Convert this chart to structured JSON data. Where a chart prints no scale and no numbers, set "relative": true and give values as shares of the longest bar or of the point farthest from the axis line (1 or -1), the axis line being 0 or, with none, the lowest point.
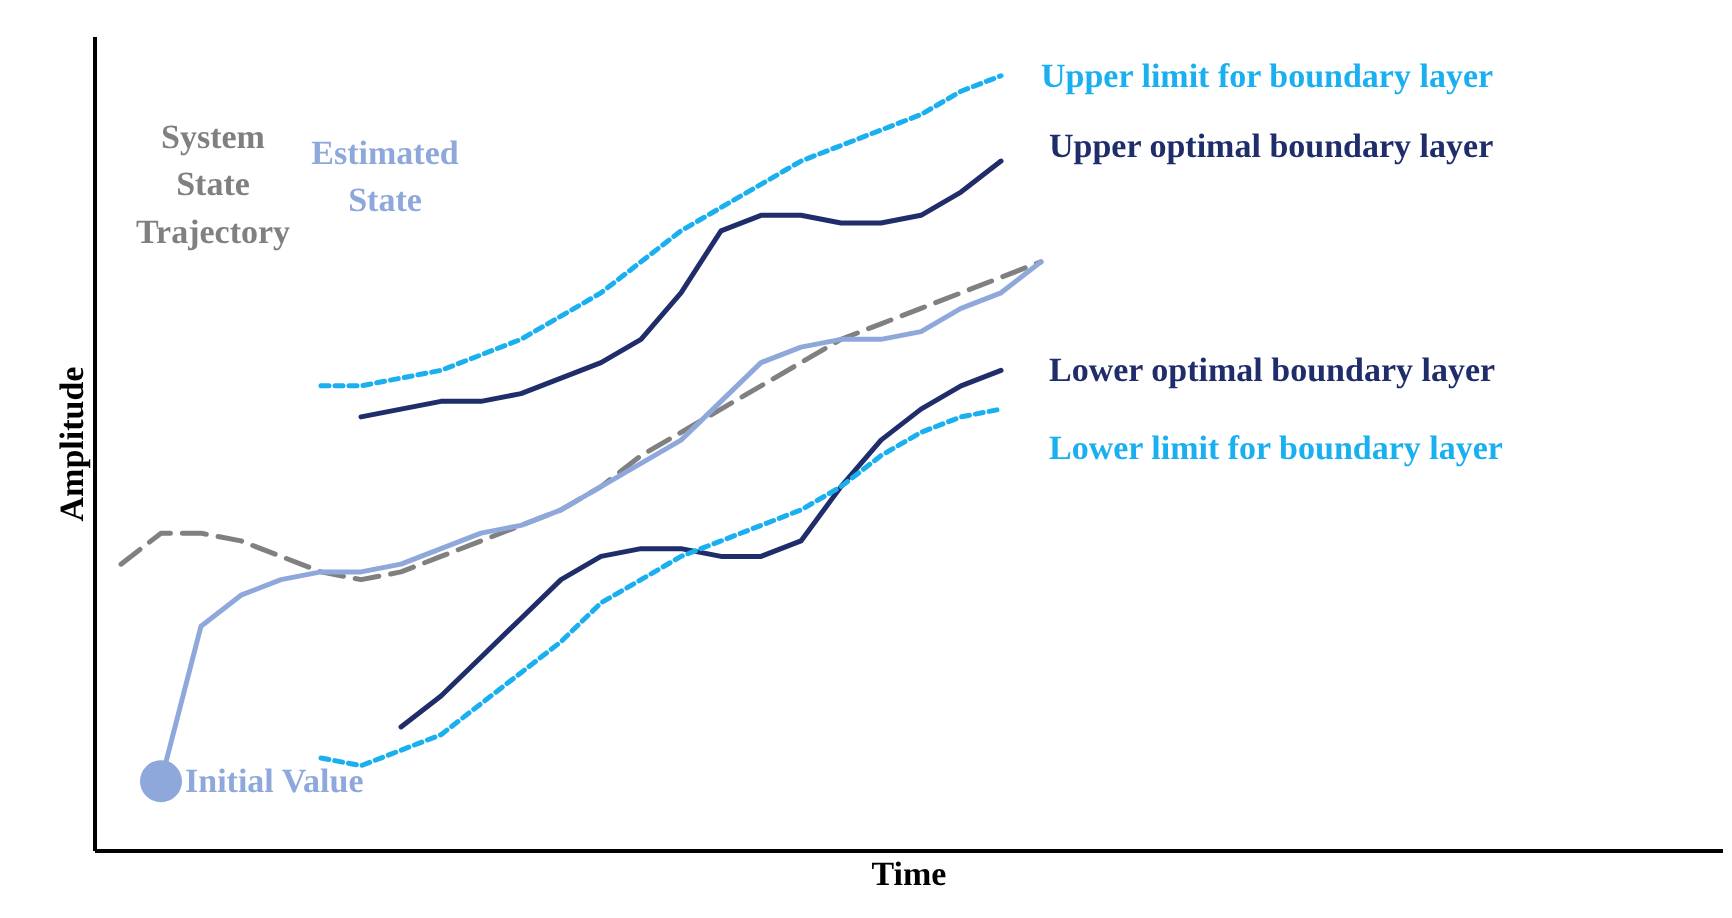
{
  "chart_data": {
    "type": "line",
    "relative": true,
    "xlabel": "Time",
    "ylabel": "Amplitude",
    "categories": [
      null,
      null,
      null,
      null,
      null,
      null,
      null,
      null,
      null,
      null,
      null,
      null,
      null,
      null,
      null,
      null,
      null,
      null,
      null,
      null,
      null,
      null,
      null,
      null
    ],
    "series": [
      {
        "name": "System State Trajectory",
        "color": "#808080",
        "line_style": "dashed",
        "values": [
          0.37,
          0.41,
          0.41,
          0.4,
          0.38,
          0.36,
          0.35,
          0.36,
          0.38,
          0.4,
          0.42,
          0.44,
          0.47,
          0.51,
          0.54,
          0.57,
          0.6,
          0.63,
          0.66,
          0.68,
          0.7,
          0.72,
          0.74,
          0.76
        ]
      },
      {
        "name": "Estimated State",
        "color": "#8fa8dc",
        "line_style": "solid",
        "values": [
          null,
          0.09,
          0.29,
          0.33,
          0.35,
          0.36,
          0.36,
          0.37,
          0.39,
          0.41,
          0.42,
          0.44,
          0.47,
          0.5,
          0.53,
          0.58,
          0.63,
          0.65,
          0.66,
          0.66,
          0.67,
          0.7,
          0.72,
          0.76
        ]
      },
      {
        "name": "Upper limit for boundary layer",
        "color": "#1ab0f0",
        "line_style": "dotted",
        "values": [
          null,
          null,
          null,
          null,
          null,
          0.6,
          0.6,
          0.61,
          0.62,
          0.64,
          0.66,
          0.69,
          0.72,
          0.76,
          0.8,
          0.83,
          0.86,
          0.89,
          0.91,
          0.93,
          0.95,
          0.98,
          1.0,
          null
        ]
      },
      {
        "name": "Upper optimal boundary layer",
        "color": "#1f2d6b",
        "line_style": "solid",
        "values": [
          null,
          null,
          null,
          null,
          null,
          null,
          0.56,
          0.57,
          0.58,
          0.58,
          0.59,
          0.61,
          0.63,
          0.66,
          0.72,
          0.8,
          0.82,
          0.82,
          0.81,
          0.81,
          0.82,
          0.85,
          0.89,
          null
        ]
      },
      {
        "name": "Lower optimal boundary layer",
        "color": "#1f2d6b",
        "line_style": "solid",
        "values": [
          null,
          null,
          null,
          null,
          null,
          null,
          null,
          0.16,
          0.2,
          0.25,
          0.3,
          0.35,
          0.38,
          0.39,
          0.39,
          0.38,
          0.38,
          0.4,
          0.47,
          0.53,
          0.57,
          0.6,
          0.62,
          null
        ]
      },
      {
        "name": "Lower limit for boundary layer",
        "color": "#1ab0f0",
        "line_style": "dotted",
        "values": [
          null,
          null,
          null,
          null,
          null,
          0.12,
          0.11,
          0.13,
          0.15,
          0.19,
          0.23,
          0.27,
          0.32,
          0.35,
          0.38,
          0.4,
          0.42,
          0.44,
          0.47,
          0.51,
          0.54,
          0.56,
          0.57,
          null
        ]
      }
    ],
    "annotations": [
      "Initial Value"
    ]
  }
}
